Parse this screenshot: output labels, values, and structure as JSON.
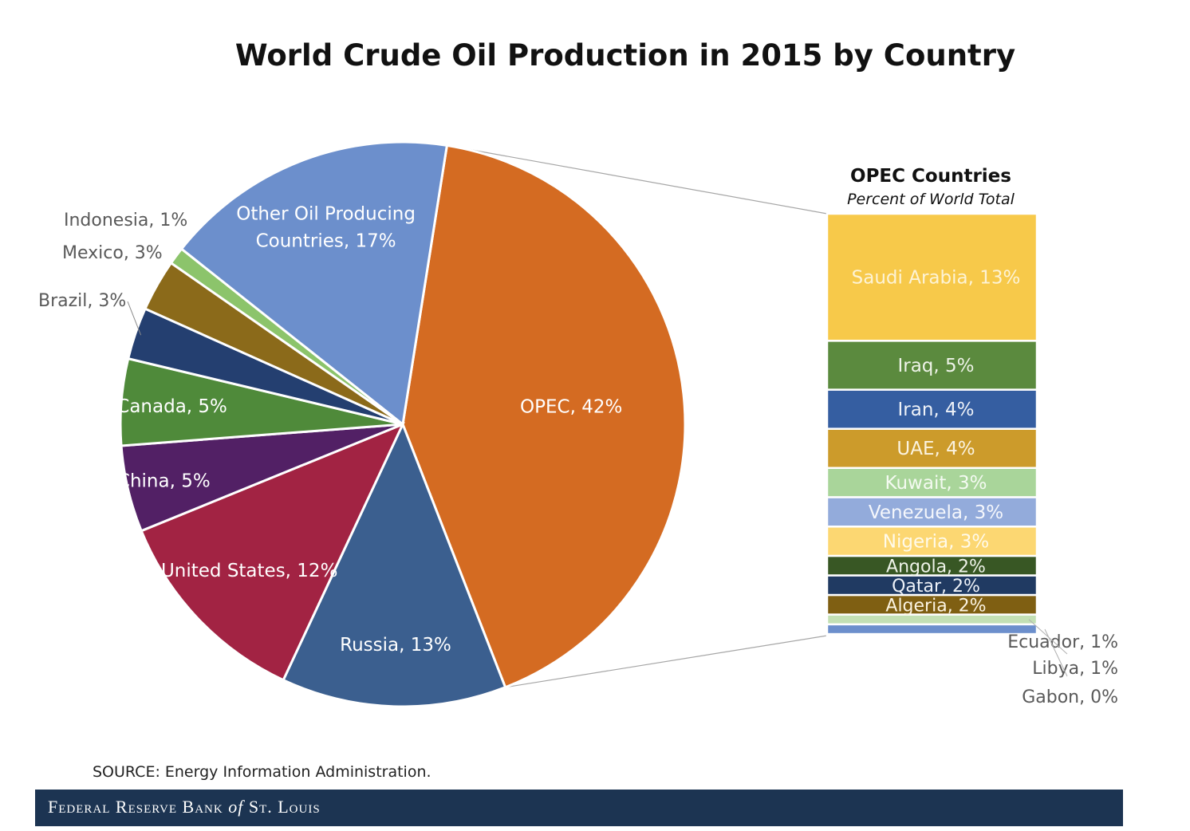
{
  "title": "World Crude Oil Production in 2015 by Country",
  "source": "SOURCE: Energy Information  Administration.",
  "footer": {
    "brand_pre": "Federal Reserve Bank ",
    "brand_of": "of",
    "brand_post": " St. Louis"
  },
  "chart_data": [
    {
      "type": "pie",
      "title": "World Crude Oil Production in 2015 by Country",
      "slices": [
        {
          "label": "OPEC, 42%",
          "name": "OPEC",
          "value": 42,
          "color": "#d46b22"
        },
        {
          "label": "Russia, 13%",
          "name": "Russia",
          "value": 13,
          "color": "#3b5f8f"
        },
        {
          "label": "United States, 12%",
          "name": "United States",
          "value": 12,
          "color": "#a22343"
        },
        {
          "label": "China, 5%",
          "name": "China",
          "value": 5,
          "color": "#522065"
        },
        {
          "label": "Canada, 5%",
          "name": "Canada",
          "value": 5,
          "color": "#4f8a3a"
        },
        {
          "label": "Brazil, 3%",
          "name": "Brazil",
          "value": 3,
          "color": "#243f70"
        },
        {
          "label": "Mexico, 3%",
          "name": "Mexico",
          "value": 3,
          "color": "#8b6a1a"
        },
        {
          "label": "Indonesia, 1%",
          "name": "Indonesia",
          "value": 1,
          "color": "#8cc46b"
        },
        {
          "label": "Other Oil Producing Countries, 17%",
          "name": "Other Oil Producing Countries",
          "value": 17,
          "color": "#6c8fcc"
        }
      ]
    },
    {
      "type": "bar",
      "title": "OPEC Countries",
      "subtitle": "Percent of World Total",
      "stacked": true,
      "segments": [
        {
          "label": "Saudi Arabia, 13%",
          "name": "Saudi Arabia",
          "value": 13,
          "color": "#f7c94a",
          "text_color": "#fdf3d5"
        },
        {
          "label": "Iraq, 5%",
          "name": "Iraq",
          "value": 5,
          "color": "#5b8a3e",
          "text_color": "#eef3e8"
        },
        {
          "label": "Iran, 4%",
          "name": "Iran",
          "value": 4,
          "color": "#355ea1",
          "text_color": "#eef2f8"
        },
        {
          "label": "UAE, 4%",
          "name": "UAE",
          "value": 4,
          "color": "#cc9b2b",
          "text_color": "#fbf3e0"
        },
        {
          "label": "Kuwait, 3%",
          "name": "Kuwait",
          "value": 3,
          "color": "#a9d59a",
          "text_color": "#f4faf1"
        },
        {
          "label": "Venezuela, 3%",
          "name": "Venezuela",
          "value": 3,
          "color": "#93abdb",
          "text_color": "#f5f7fc"
        },
        {
          "label": "Nigeria, 3%",
          "name": "Nigeria",
          "value": 3,
          "color": "#fcd772",
          "text_color": "#fffaea"
        },
        {
          "label": "Angola, 2%",
          "name": "Angola",
          "value": 2,
          "color": "#385724",
          "text_color": "#eef3e8"
        },
        {
          "label": "Qatar, 2%",
          "name": "Qatar",
          "value": 2,
          "color": "#203a62",
          "text_color": "#eef2f8"
        },
        {
          "label": "Algeria, 2%",
          "name": "Algeria",
          "value": 2,
          "color": "#7f5f12",
          "text_color": "#fbf3e0"
        },
        {
          "label": "Ecuador, 1%",
          "name": "Ecuador",
          "value": 1,
          "color": "#c3e0b4",
          "text_color": "#444444"
        },
        {
          "label": "Libya, 1%",
          "name": "Libya",
          "value": 1,
          "color": "#6c8fcc",
          "text_color": "#444444"
        },
        {
          "label": "Gabon, 0%",
          "name": "Gabon",
          "value": 0,
          "color": "#f7c94a",
          "text_color": "#444444"
        }
      ]
    }
  ]
}
